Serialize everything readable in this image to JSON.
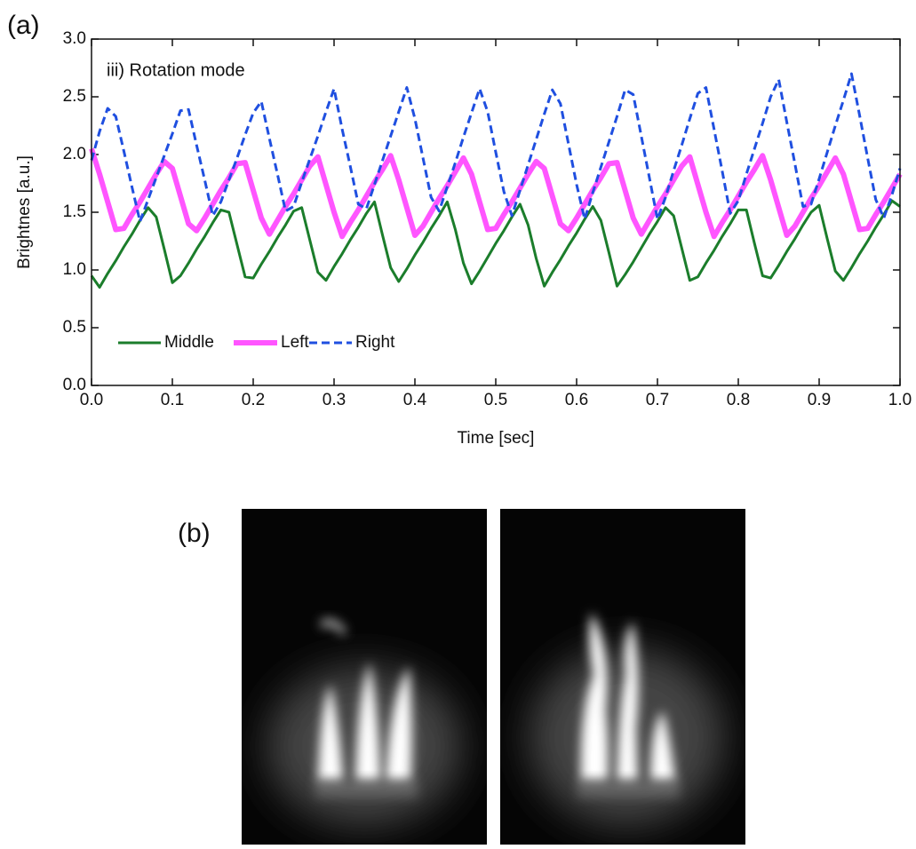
{
  "chart_data": {
    "type": "line",
    "panel_label": "(a)",
    "annotation": "iii) Rotation mode",
    "xlabel": "Time [sec]",
    "ylabel": "Brightnes [a.u.]",
    "xlim": [
      0,
      1
    ],
    "ylim": [
      0,
      3
    ],
    "xticks": [
      {
        "value": 0,
        "label": "0.0"
      },
      0.1,
      0.2,
      0.3,
      0.4,
      0.5,
      0.6,
      0.7,
      0.8,
      0.9,
      {
        "value": 1,
        "label": "1.0"
      }
    ],
    "yticks": [
      {
        "value": 0,
        "label": "0.0"
      },
      0.5,
      {
        "value": 1,
        "label": "1.0"
      },
      1.5,
      {
        "value": 2,
        "label": "2.0"
      },
      2.5,
      {
        "value": 3,
        "label": "3.0"
      }
    ],
    "x": [
      0,
      0.01,
      0.02,
      0.03,
      0.04,
      0.05,
      0.06,
      0.07,
      0.08,
      0.09,
      0.1,
      0.11,
      0.12,
      0.13,
      0.14,
      0.15,
      0.16,
      0.17,
      0.18,
      0.19,
      0.2,
      0.21,
      0.22,
      0.23,
      0.24,
      0.25,
      0.26,
      0.27,
      0.28,
      0.29,
      0.3,
      0.31,
      0.32,
      0.33,
      0.34,
      0.35,
      0.36,
      0.37,
      0.38,
      0.39,
      0.4,
      0.41,
      0.42,
      0.43,
      0.44,
      0.45,
      0.46,
      0.47,
      0.48,
      0.49,
      0.5,
      0.51,
      0.52,
      0.53,
      0.54,
      0.55,
      0.56,
      0.57,
      0.58,
      0.59,
      0.6,
      0.61,
      0.62,
      0.63,
      0.64,
      0.65,
      0.66,
      0.67,
      0.68,
      0.69,
      0.7,
      0.71,
      0.72,
      0.73,
      0.74,
      0.75,
      0.76,
      0.77,
      0.78,
      0.79,
      0.8,
      0.81,
      0.82,
      0.83,
      0.84,
      0.85,
      0.86,
      0.87,
      0.88,
      0.89,
      0.9,
      0.91,
      0.92,
      0.93,
      0.94,
      0.95,
      0.96,
      0.97,
      0.98,
      0.99,
      1
    ],
    "series": [
      {
        "name": "Middle",
        "color": "#1b7d2b",
        "values": [
          0.95,
          0.85,
          0.97,
          1.08,
          1.2,
          1.31,
          1.43,
          1.54,
          1.46,
          1.18,
          0.89,
          0.95,
          1.06,
          1.18,
          1.29,
          1.41,
          1.52,
          1.5,
          1.22,
          0.94,
          0.93,
          1.05,
          1.16,
          1.28,
          1.39,
          1.51,
          1.54,
          1.26,
          0.98,
          0.91,
          1.03,
          1.14,
          1.26,
          1.37,
          1.49,
          1.59,
          1.3,
          1.02,
          0.9,
          1.01,
          1.13,
          1.24,
          1.36,
          1.47,
          1.59,
          1.35,
          1.06,
          0.88,
          0.99,
          1.11,
          1.23,
          1.34,
          1.46,
          1.57,
          1.39,
          1.1,
          0.86,
          0.98,
          1.09,
          1.21,
          1.32,
          1.44,
          1.55,
          1.43,
          1.15,
          0.86,
          0.96,
          1.07,
          1.19,
          1.31,
          1.42,
          1.54,
          1.47,
          1.19,
          0.91,
          0.94,
          1.06,
          1.17,
          1.29,
          1.4,
          1.52,
          1.52,
          1.23,
          0.95,
          0.93,
          1.04,
          1.16,
          1.27,
          1.39,
          1.5,
          1.56,
          1.27,
          0.99,
          0.91,
          1.02,
          1.14,
          1.25,
          1.37,
          1.48,
          1.6,
          1.55
        ]
      },
      {
        "name": "Left",
        "color": "#ff55ff",
        "values": [
          2.05,
          1.83,
          1.59,
          1.35,
          1.36,
          1.48,
          1.59,
          1.71,
          1.83,
          1.94,
          1.88,
          1.64,
          1.4,
          1.34,
          1.45,
          1.57,
          1.69,
          1.8,
          1.92,
          1.93,
          1.69,
          1.45,
          1.31,
          1.43,
          1.55,
          1.66,
          1.78,
          1.9,
          1.98,
          1.74,
          1.5,
          1.29,
          1.41,
          1.52,
          1.64,
          1.76,
          1.87,
          1.99,
          1.78,
          1.54,
          1.3,
          1.38,
          1.5,
          1.62,
          1.73,
          1.85,
          1.97,
          1.83,
          1.59,
          1.35,
          1.36,
          1.48,
          1.59,
          1.71,
          1.83,
          1.94,
          1.88,
          1.64,
          1.4,
          1.34,
          1.45,
          1.57,
          1.69,
          1.8,
          1.92,
          1.93,
          1.69,
          1.45,
          1.31,
          1.43,
          1.55,
          1.66,
          1.78,
          1.9,
          1.98,
          1.74,
          1.5,
          1.29,
          1.41,
          1.52,
          1.64,
          1.76,
          1.87,
          1.99,
          1.78,
          1.54,
          1.3,
          1.38,
          1.5,
          1.62,
          1.73,
          1.85,
          1.97,
          1.83,
          1.59,
          1.35,
          1.36,
          1.48,
          1.59,
          1.71,
          1.83
        ]
      },
      {
        "name": "Right",
        "color": "#1f4fe0",
        "dashed": true,
        "values": [
          1.95,
          2.2,
          2.4,
          2.33,
          2.03,
          1.72,
          1.42,
          1.61,
          1.8,
          1.99,
          2.18,
          2.38,
          2.39,
          2.08,
          1.78,
          1.47,
          1.59,
          1.78,
          1.97,
          2.17,
          2.36,
          2.46,
          2.14,
          1.83,
          1.51,
          1.55,
          1.76,
          1.96,
          2.16,
          2.37,
          2.57,
          2.22,
          1.9,
          1.57,
          1.53,
          1.74,
          1.95,
          2.16,
          2.37,
          2.58,
          2.31,
          1.97,
          1.63,
          1.51,
          1.72,
          1.93,
          2.15,
          2.36,
          2.57,
          2.37,
          2.02,
          1.68,
          1.47,
          1.69,
          1.91,
          2.13,
          2.35,
          2.56,
          2.44,
          2.09,
          1.74,
          1.44,
          1.67,
          1.89,
          2.11,
          2.33,
          2.56,
          2.52,
          2.16,
          1.8,
          1.44,
          1.63,
          1.86,
          2.08,
          2.31,
          2.53,
          2.58,
          2.22,
          1.86,
          1.49,
          1.6,
          1.83,
          2.05,
          2.27,
          2.5,
          2.65,
          2.28,
          1.92,
          1.55,
          1.57,
          1.79,
          2.02,
          2.25,
          2.47,
          2.7,
          2.34,
          1.97,
          1.61,
          1.45,
          1.65,
          1.88
        ]
      }
    ]
  },
  "photo_panel": {
    "label": "(b)"
  }
}
